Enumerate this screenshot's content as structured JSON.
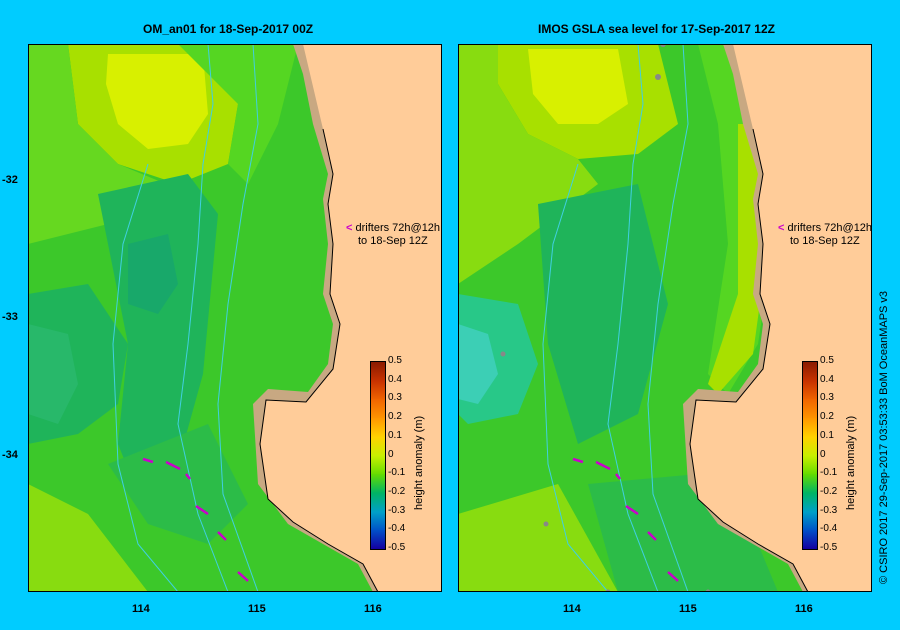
{
  "left_panel": {
    "title": "OM_an01  for 18-Sep-2017 00Z",
    "drifter_note_1": "drifters 72h@12h",
    "drifter_note_2": "to 18-Sep 12Z"
  },
  "right_panel": {
    "title": "IMOS GSLA sea level  for 17-Sep-2017 12Z",
    "drifter_note_1": "drifters 72h@12h",
    "drifter_note_2": "to 18-Sep 12Z"
  },
  "axes": {
    "lat_ticks": [
      "-32",
      "-33",
      "-34"
    ],
    "lon_ticks": [
      "114",
      "115",
      "116"
    ]
  },
  "colorbar": {
    "title": "height anomaly (m)",
    "labels": [
      "0.5",
      "0.4",
      "0.3",
      "0.2",
      "0.1",
      "0",
      "-0.1",
      "-0.2",
      "-0.3",
      "-0.4",
      "-0.5"
    ],
    "colors": [
      "#8b1a00",
      "#c83200",
      "#f06400",
      "#ff9600",
      "#ffd200",
      "#c8f000",
      "#64dc00",
      "#00b464",
      "#00a0c8",
      "#0050c8",
      "#1400a0"
    ]
  },
  "copyright": "© CSIRO 2017   29-Sep-2017 03:53:33 BoM OceanMAPS v3",
  "colors": {
    "background": "#00ccff",
    "land": "#ffcc99",
    "shelf": "#c8a882",
    "drifter": "#cc00cc",
    "isobath": "#40d0e0"
  }
}
